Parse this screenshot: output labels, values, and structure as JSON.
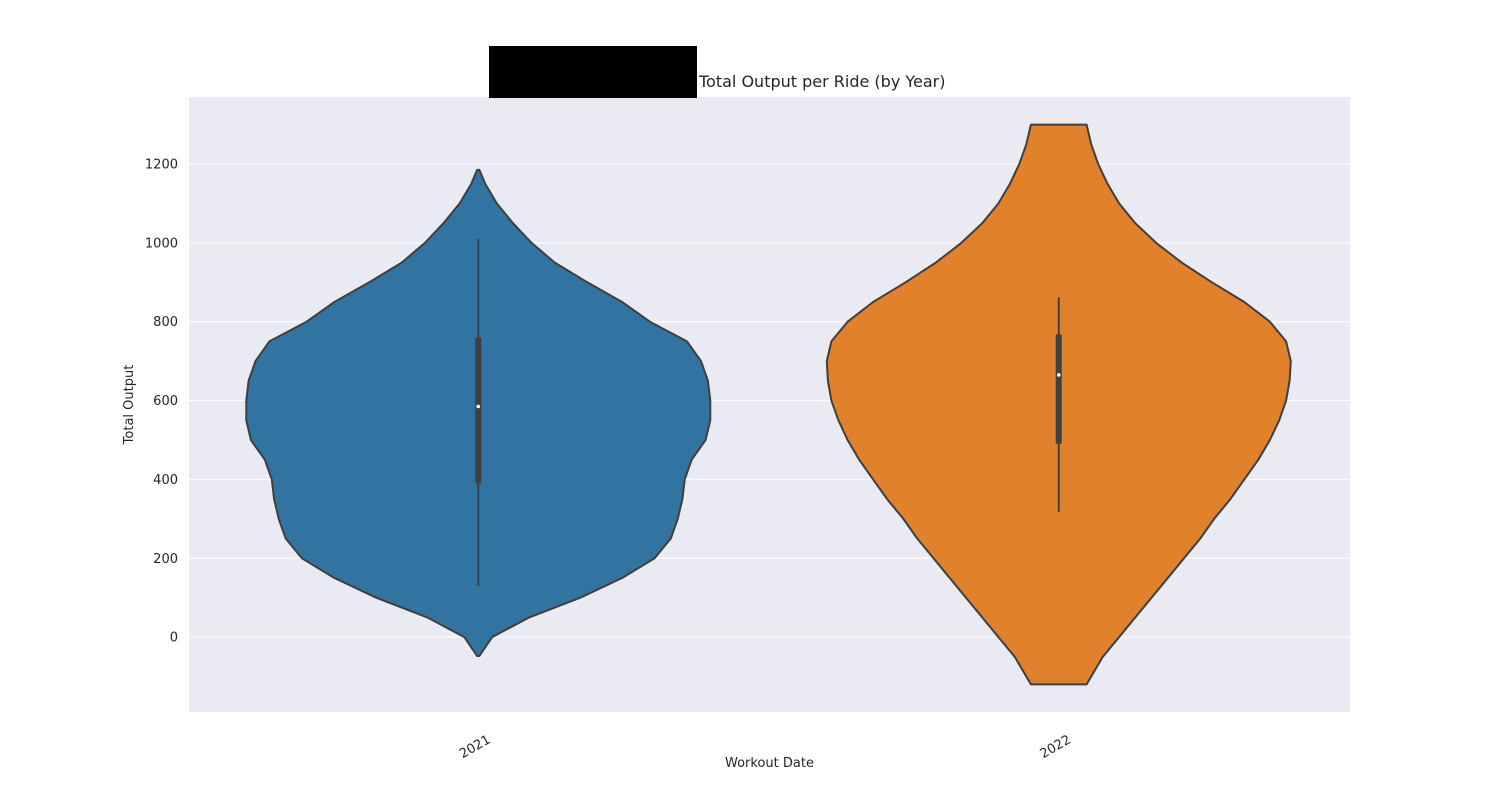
{
  "chart_data": {
    "type": "violin",
    "title": "Total Output per Ride (by Year)",
    "xlabel": "Workout Date",
    "ylabel": "Total Output",
    "categories": [
      "2021",
      "2022"
    ],
    "ylim": [
      -190,
      1370
    ],
    "yticks": [
      0,
      200,
      400,
      600,
      800,
      1000,
      1200
    ],
    "grid": true,
    "series": [
      {
        "category": "2021",
        "color": "#3274a1",
        "min": 130,
        "q1": 390,
        "median": 585,
        "q3": 760,
        "max": 1010,
        "kde_extent": [
          -48,
          1185
        ],
        "density_profile": [
          [
            -48,
            0.005
          ],
          [
            0,
            0.06
          ],
          [
            50,
            0.22
          ],
          [
            100,
            0.44
          ],
          [
            150,
            0.62
          ],
          [
            200,
            0.76
          ],
          [
            250,
            0.83
          ],
          [
            300,
            0.86
          ],
          [
            350,
            0.88
          ],
          [
            400,
            0.89
          ],
          [
            450,
            0.92
          ],
          [
            500,
            0.98
          ],
          [
            550,
            1.0
          ],
          [
            600,
            1.0
          ],
          [
            650,
            0.99
          ],
          [
            700,
            0.96
          ],
          [
            750,
            0.9
          ],
          [
            800,
            0.74
          ],
          [
            850,
            0.62
          ],
          [
            900,
            0.47
          ],
          [
            950,
            0.33
          ],
          [
            1000,
            0.23
          ],
          [
            1050,
            0.15
          ],
          [
            1100,
            0.08
          ],
          [
            1150,
            0.03
          ],
          [
            1185,
            0.005
          ]
        ]
      },
      {
        "category": "2022",
        "color": "#e1812c",
        "min": 318,
        "q1": 490,
        "median": 665,
        "q3": 768,
        "max": 862,
        "kde_extent": [
          -120,
          1300
        ],
        "density_profile": [
          [
            -120,
            0.12
          ],
          [
            -100,
            0.14
          ],
          [
            -50,
            0.19
          ],
          [
            0,
            0.26
          ],
          [
            50,
            0.33
          ],
          [
            100,
            0.4
          ],
          [
            150,
            0.47
          ],
          [
            200,
            0.54
          ],
          [
            250,
            0.61
          ],
          [
            300,
            0.67
          ],
          [
            350,
            0.74
          ],
          [
            400,
            0.8
          ],
          [
            450,
            0.86
          ],
          [
            500,
            0.91
          ],
          [
            550,
            0.95
          ],
          [
            600,
            0.98
          ],
          [
            650,
            0.995
          ],
          [
            700,
            1.0
          ],
          [
            750,
            0.98
          ],
          [
            800,
            0.91
          ],
          [
            850,
            0.8
          ],
          [
            900,
            0.66
          ],
          [
            950,
            0.53
          ],
          [
            1000,
            0.42
          ],
          [
            1050,
            0.33
          ],
          [
            1100,
            0.26
          ],
          [
            1150,
            0.21
          ],
          [
            1200,
            0.17
          ],
          [
            1250,
            0.14
          ],
          [
            1300,
            0.12
          ]
        ]
      }
    ]
  },
  "colors": {
    "plot_background": "#eaeaf2",
    "grid": "#ffffff",
    "outline": "#3f3f3f",
    "box": "#3f3f3f",
    "redaction": "#000000"
  }
}
